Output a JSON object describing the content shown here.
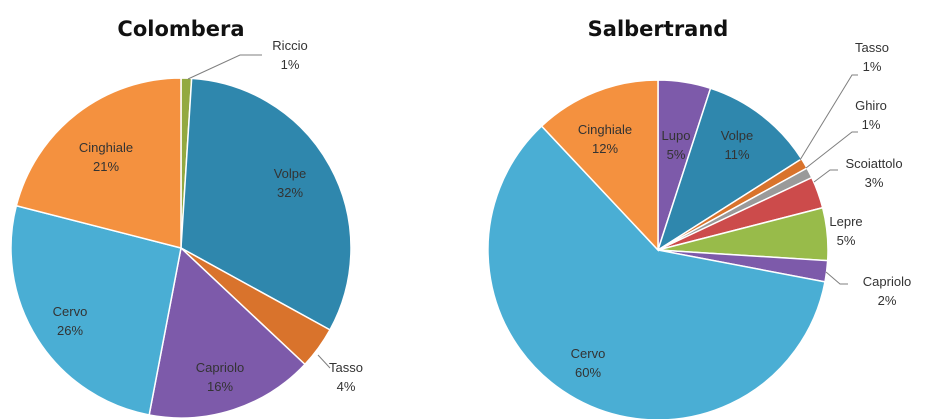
{
  "chart_data": [
    {
      "type": "pie",
      "title": "Colombera",
      "series": [
        {
          "name": "Riccio",
          "value": 1,
          "label": "1%",
          "color": "#93a940"
        },
        {
          "name": "Volpe",
          "value": 32,
          "label": "32%",
          "color": "#2f87ad"
        },
        {
          "name": "Tasso",
          "value": 4,
          "label": "4%",
          "color": "#d9732c"
        },
        {
          "name": "Capriolo",
          "value": 16,
          "label": "16%",
          "color": "#7d5aaa"
        },
        {
          "name": "Cervo",
          "value": 26,
          "label": "26%",
          "color": "#4aaed4"
        },
        {
          "name": "Cinghiale",
          "value": 21,
          "label": "21%",
          "color": "#f4913f"
        }
      ]
    },
    {
      "type": "pie",
      "title": "Salbertrand",
      "series": [
        {
          "name": "Lupo",
          "value": 5,
          "label": "5%",
          "color": "#7d5aaa"
        },
        {
          "name": "Volpe",
          "value": 11,
          "label": "11%",
          "color": "#2f87ad"
        },
        {
          "name": "Tasso",
          "value": 1,
          "label": "1%",
          "color": "#d9732c"
        },
        {
          "name": "Ghiro",
          "value": 1,
          "label": "1%",
          "color": "#9a9a9a"
        },
        {
          "name": "Scoiattolo",
          "value": 3,
          "label": "3%",
          "color": "#cc4b4b"
        },
        {
          "name": "Lepre",
          "value": 5,
          "label": "5%",
          "color": "#98bb4a"
        },
        {
          "name": "Capriolo",
          "value": 2,
          "label": "2%",
          "color": "#7d5aaa"
        },
        {
          "name": "Cervo",
          "value": 60,
          "label": "60%",
          "color": "#4aaed4"
        },
        {
          "name": "Cinghiale",
          "value": 12,
          "label": "12%",
          "color": "#f4913f"
        }
      ]
    }
  ]
}
